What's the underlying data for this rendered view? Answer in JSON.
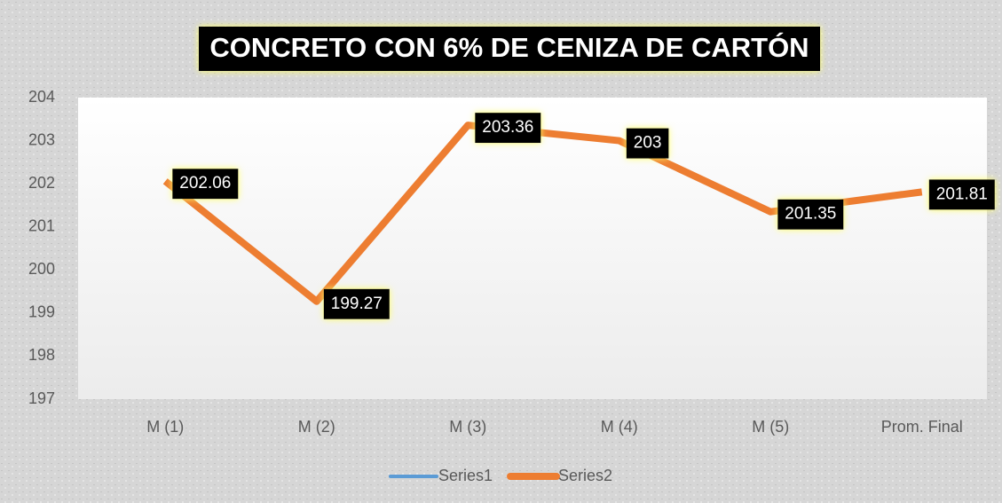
{
  "chart_data": {
    "type": "line",
    "title": "CONCRETO CON 6% DE CENIZA DE CARTÓN",
    "categories": [
      "M (1)",
      "M (2)",
      "M (3)",
      "M (4)",
      "M (5)",
      "Prom. Final"
    ],
    "series": [
      {
        "name": "Series1",
        "color": "#5b9bd5",
        "values": [
          null,
          null,
          null,
          null,
          null,
          null
        ]
      },
      {
        "name": "Series2",
        "color": "#ed7d31",
        "values": [
          202.06,
          199.27,
          203.36,
          203,
          201.35,
          201.81
        ]
      }
    ],
    "ylim": [
      197,
      204
    ],
    "yticks": [
      197,
      198,
      199,
      200,
      201,
      202,
      203,
      204
    ],
    "grid": false,
    "legend": "bottom"
  }
}
